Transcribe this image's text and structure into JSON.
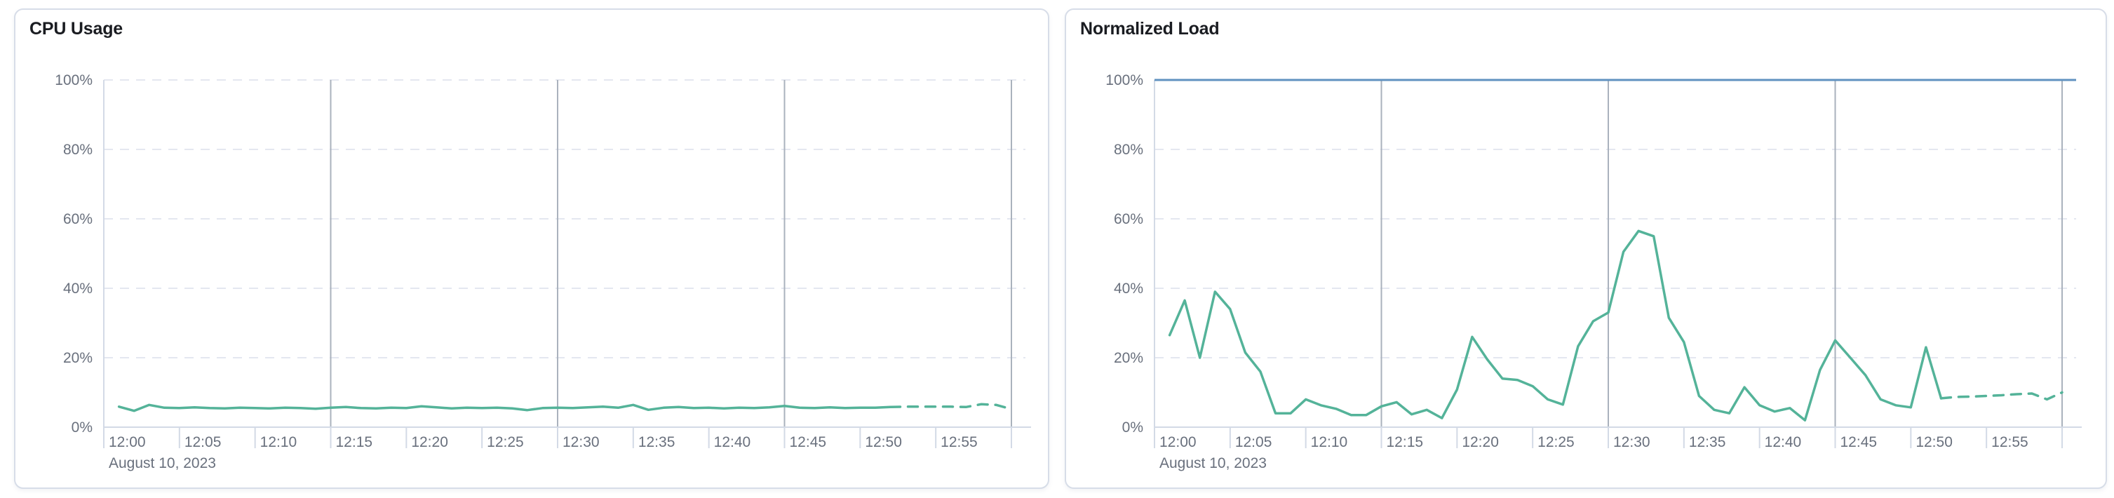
{
  "panels": [
    {
      "title": "CPU Usage"
    },
    {
      "title": "Normalized Load"
    }
  ],
  "colors": {
    "series_green": "#54b399",
    "threshold_blue": "#6092c0",
    "grid_dashed": "#e4e7f0",
    "grid_vertical": "#aab2bd",
    "axis_line": "#d3dae6",
    "tick_label": "#69707d",
    "title_text": "#1a1c21"
  },
  "chart_data": [
    {
      "type": "line",
      "title": "CPU Usage",
      "ylabel": "",
      "ylim": [
        0,
        100
      ],
      "grid": true,
      "legend": false,
      "y_tick_labels": [
        "0%",
        "20%",
        "40%",
        "60%",
        "80%",
        "100%"
      ],
      "x_tick_labels": [
        "12:00",
        "12:05",
        "12:10",
        "12:15",
        "12:20",
        "12:25",
        "12:30",
        "12:35",
        "12:40",
        "12:45",
        "12:50",
        "12:55"
      ],
      "x_axis_date_label": "August 10, 2023",
      "x_range_minutes": [
        0,
        60
      ],
      "vertical_gridline_minutes": [
        15,
        30,
        45,
        60
      ],
      "series": [
        {
          "name": "cpu-usage",
          "color": "#54b399",
          "start_minute": 1,
          "interval_minutes": 1,
          "dashed_from_minute": 52,
          "values": [
            5.9,
            4.7,
            6.4,
            5.6,
            5.5,
            5.7,
            5.5,
            5.4,
            5.6,
            5.5,
            5.4,
            5.6,
            5.5,
            5.3,
            5.6,
            5.8,
            5.5,
            5.4,
            5.6,
            5.5,
            6.0,
            5.7,
            5.4,
            5.6,
            5.5,
            5.6,
            5.4,
            4.9,
            5.5,
            5.6,
            5.5,
            5.7,
            5.9,
            5.6,
            6.4,
            5.0,
            5.6,
            5.8,
            5.5,
            5.6,
            5.4,
            5.6,
            5.5,
            5.7,
            6.1,
            5.6,
            5.5,
            5.7,
            5.5,
            5.6,
            5.6,
            5.8,
            5.9,
            5.9,
            5.9,
            5.9,
            5.8,
            6.6,
            6.4,
            5.2
          ]
        }
      ]
    },
    {
      "type": "line",
      "title": "Normalized Load",
      "ylabel": "",
      "ylim": [
        0,
        100
      ],
      "grid": true,
      "legend": false,
      "y_tick_labels": [
        "0%",
        "20%",
        "40%",
        "60%",
        "80%",
        "100%"
      ],
      "x_tick_labels": [
        "12:00",
        "12:05",
        "12:10",
        "12:15",
        "12:20",
        "12:25",
        "12:30",
        "12:35",
        "12:40",
        "12:45",
        "12:50",
        "12:55"
      ],
      "x_axis_date_label": "August 10, 2023",
      "x_range_minutes": [
        0,
        60
      ],
      "vertical_gridline_minutes": [
        15,
        30,
        45,
        60
      ],
      "threshold_line": {
        "value": 100,
        "color": "#6092c0"
      },
      "series": [
        {
          "name": "normalized-load",
          "color": "#54b399",
          "start_minute": 1,
          "interval_minutes": 1,
          "dashed_from_minute": 52,
          "values": [
            26.5,
            36.5,
            20,
            39,
            34,
            21.5,
            16,
            4,
            4,
            8,
            6.3,
            5.3,
            3.5,
            3.5,
            6,
            7.2,
            3.7,
            5,
            2.6,
            10.8,
            26,
            19.5,
            14,
            13.6,
            11.8,
            8,
            6.5,
            23.3,
            30.5,
            33,
            50.5,
            56.5,
            55,
            31.5,
            24.5,
            9,
            5,
            4,
            11.5,
            6.3,
            4.5,
            5.5,
            2,
            16.5,
            25,
            20,
            15,
            8,
            6.3,
            5.7,
            23,
            8.3,
            8.7,
            8.8,
            9,
            9.2,
            9.5,
            9.7,
            8,
            10
          ]
        }
      ]
    }
  ]
}
